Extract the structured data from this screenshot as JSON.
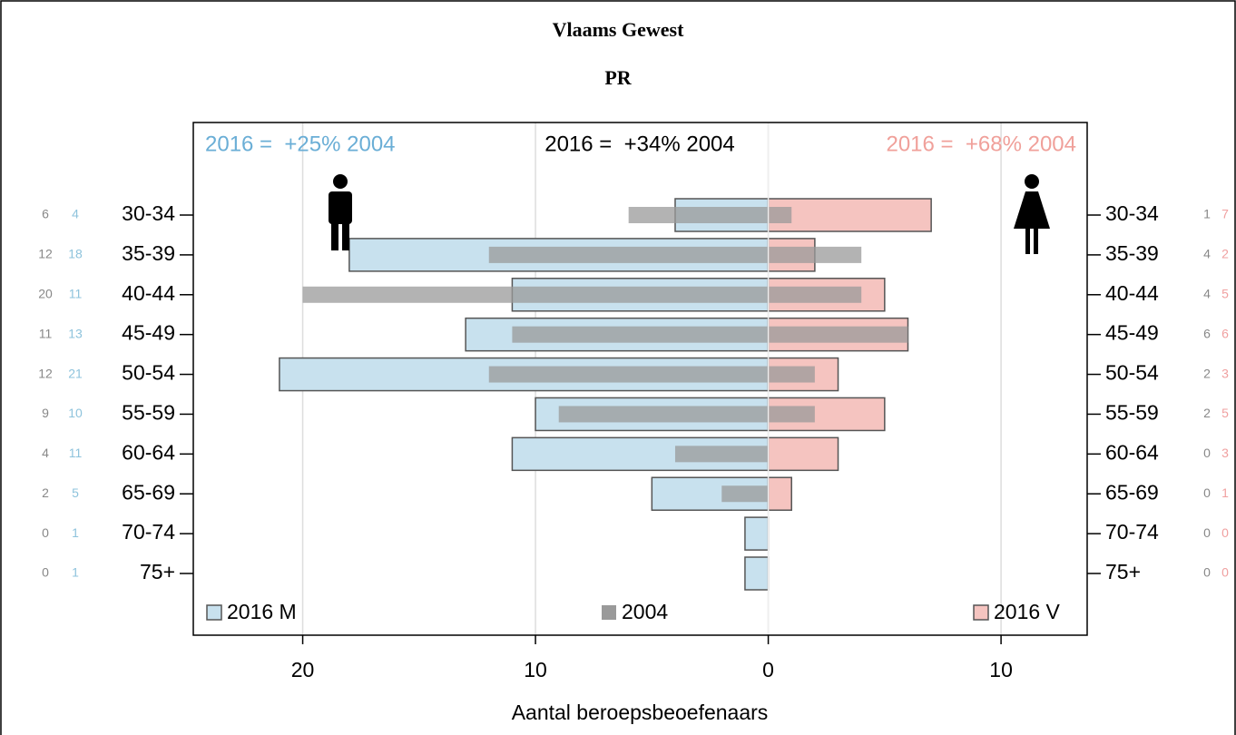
{
  "chart_data": {
    "type": "pyramid",
    "title": "Vlaams Gewest",
    "subtitle": "PR",
    "x_label": "Aantal beroepsbeoefenaars",
    "annotations": [
      {
        "text": "2016 =  +25% 2004",
        "color": "#6aaed6"
      },
      {
        "text": "2016 =  +34% 2004",
        "color": "#000000"
      },
      {
        "text": "2016 =  +68% 2004",
        "color": "#f0a09a"
      }
    ],
    "categories": [
      "30-34",
      "35-39",
      "40-44",
      "45-49",
      "50-54",
      "55-59",
      "60-64",
      "65-69",
      "70-74",
      "75+"
    ],
    "series": [
      {
        "name": "2016 M",
        "color": "#c8e1ee",
        "label_color": "#8ec3dc",
        "values": [
          4,
          18,
          11,
          13,
          21,
          10,
          11,
          5,
          1,
          1
        ]
      },
      {
        "name": "2004",
        "color": "#9a9a9a",
        "label_color": "#888888",
        "values_m": [
          6,
          12,
          20,
          11,
          12,
          9,
          4,
          2,
          0,
          0
        ],
        "values_v": [
          1,
          4,
          4,
          6,
          2,
          2,
          0,
          0,
          0,
          0
        ]
      },
      {
        "name": "2016 V",
        "color": "#f5c4c0",
        "label_color": "#f0a0a0",
        "values": [
          7,
          2,
          5,
          6,
          3,
          5,
          3,
          1,
          0,
          0
        ]
      }
    ],
    "xlim": [
      -24.7,
      13.7
    ],
    "xticks": [
      {
        "value": -20,
        "label": "20"
      },
      {
        "value": -10,
        "label": "10"
      },
      0,
      10
    ],
    "grid": true
  }
}
